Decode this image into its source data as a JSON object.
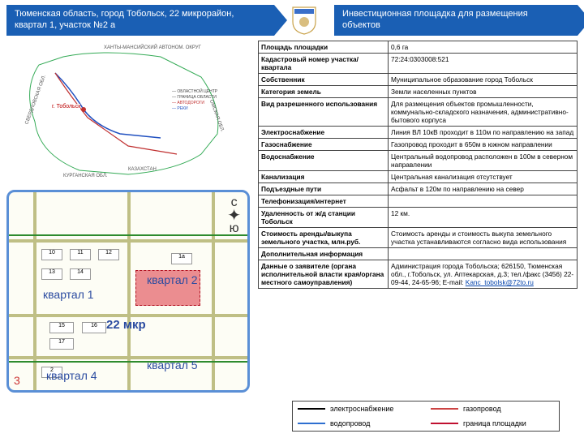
{
  "header": {
    "location_banner": "Тюменская область, город Тобольск, 22 микрорайон, квартал 1, участок №2 а",
    "title_banner": "Инвестиционная площадка для размещения объектов"
  },
  "colors": {
    "banner_bg": "#1a5fb4",
    "detail_border": "#5a8fd6",
    "block_label": "#2b4ba0",
    "plot_fill": "rgba(220,50,60,.55)",
    "plot_border": "#b01020",
    "elec": "#000000",
    "gas": "#c44",
    "water": "#2e6fd0",
    "border_plot": "#c01030"
  },
  "region_map": {
    "labels": [
      "ХАНТЫ-МАНСИЙСКИЙ АВТОНОМ. ОКРУГ",
      "СВЕРДЛОВСКАЯ ОБЛ.",
      "КУРГАНСКАЯ ОБЛ.",
      "КАЗАХСТАН",
      "ОМСКАЯ ОБЛ."
    ],
    "city": "г. Тобольск"
  },
  "detail_map": {
    "mkr": "22 мкр",
    "blocks": [
      "квартал 1",
      "квартал 2",
      "квартал 4",
      "квартал 5"
    ],
    "bldg_nums": [
      "10",
      "11",
      "12",
      "13",
      "14",
      "15",
      "16",
      "17",
      "1а",
      "2"
    ],
    "compass": {
      "n": "с",
      "s": "ю"
    }
  },
  "table": {
    "rows": [
      {
        "k": "Площадь площадки",
        "v": "0,6 га"
      },
      {
        "k": "Кадастровый номер участка/квартала",
        "v": "72:24:0303008:521"
      },
      {
        "k": "Собственник",
        "v": "Муниципальное образование город Тобольск"
      },
      {
        "k": "Категория земель",
        "v": "Земли населенных пунктов"
      },
      {
        "k": "Вид разрешенного использования",
        "v": "Для размещения объектов промышленности, коммунально-складского назначения, административно-бытового корпуса"
      },
      {
        "k": "Электроснабжение",
        "v": "Линия ВЛ 10кВ проходит в 110м по направлению на запад"
      },
      {
        "k": "Газоснабжение",
        "v": "Газопровод проходит в 650м в южном направлении"
      },
      {
        "k": "Водоснабжение",
        "v": "Центральный водопровод расположен в 100м в северном направлении"
      },
      {
        "k": "Канализация",
        "v": "Центральная канализация отсутствует"
      },
      {
        "k": "Подъездные пути",
        "v": "Асфальт в 120м по направлению на север"
      },
      {
        "k": "Телефонизация/интернет",
        "v": ""
      },
      {
        "k": "Удаленность от ж/д станции Тобольск",
        "v": "12 км."
      },
      {
        "k": "Стоимость аренды/выкупа земельного участка, млн.руб.",
        "v": "Стоимость аренды и стоимость выкупа земельного участка устанавливаются согласно вида использования"
      },
      {
        "k": "Дополнительная информация",
        "v": ""
      },
      {
        "k": "Данные о заявителе (органа исполнительной власти края/органа местного самоуправления)",
        "v": "Администрация города Тобольска; 626150, Тюменская обл., г.Тобольск, ул. Аптекарская, д.3; тел./факс (3456) 22-09-44, 24-65-96; E-mail: ",
        "email": "Kanc_tobolsk@72to.ru"
      }
    ]
  },
  "legend": {
    "items": [
      {
        "label": "электроснабжение",
        "color": "#000000"
      },
      {
        "label": "газопровод",
        "color": "#c44"
      },
      {
        "label": "водопровод",
        "color": "#2e6fd0"
      },
      {
        "label": "граница площадки",
        "color": "#c01030"
      }
    ]
  }
}
